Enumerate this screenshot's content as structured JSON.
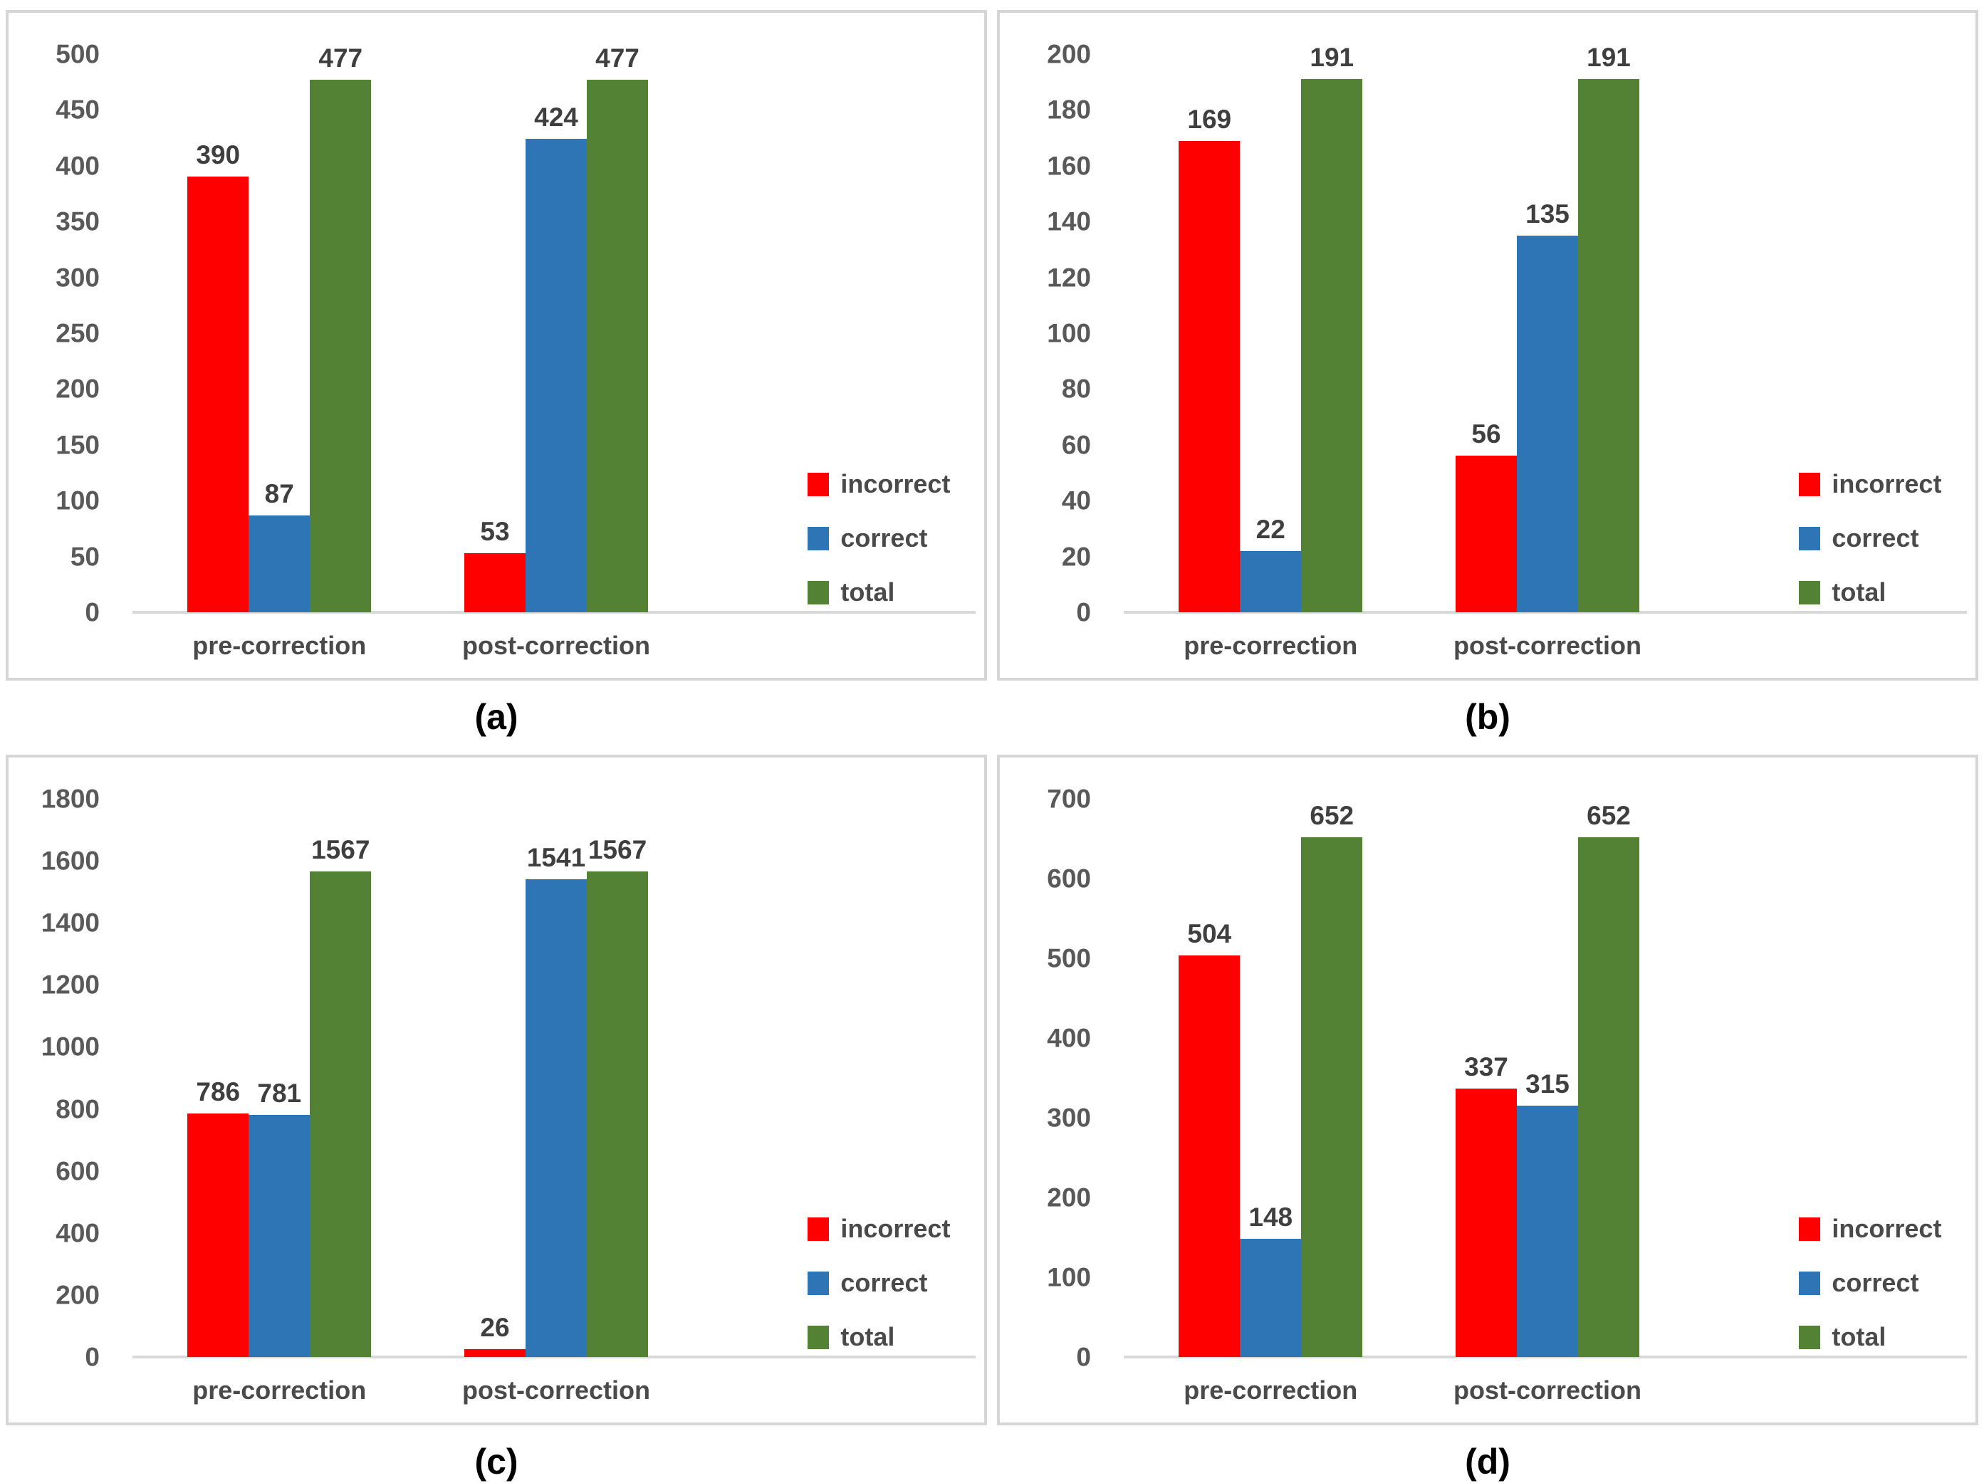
{
  "figure": {
    "description": "2x2 grid of grouped bar charts comparing incorrect, correct and total counts pre-correction vs post-correction",
    "legend_labels": [
      "incorrect",
      "correct",
      "total"
    ],
    "colors": {
      "incorrect": "#FF0000",
      "correct": "#2E75B6",
      "total": "#548235",
      "axis_text": "#595959",
      "baseline": "#D9D9D9"
    }
  },
  "chart_data": [
    {
      "id": "a",
      "type": "bar",
      "caption": "(a)",
      "categories": [
        "pre-correction",
        "post-correction"
      ],
      "series": [
        {
          "name": "incorrect",
          "color": "#FF0000",
          "values": [
            390,
            53
          ]
        },
        {
          "name": "correct",
          "color": "#2E75B6",
          "values": [
            87,
            424
          ]
        },
        {
          "name": "total",
          "color": "#548235",
          "values": [
            477,
            477
          ]
        }
      ],
      "ylim": [
        0,
        500
      ],
      "ytick_step": 50,
      "grid": false,
      "legend_position": "right-middle"
    },
    {
      "id": "b",
      "type": "bar",
      "caption": "(b)",
      "categories": [
        "pre-correction",
        "post-correction"
      ],
      "series": [
        {
          "name": "incorrect",
          "color": "#FF0000",
          "values": [
            169,
            56
          ]
        },
        {
          "name": "correct",
          "color": "#2E75B6",
          "values": [
            22,
            135
          ]
        },
        {
          "name": "total",
          "color": "#548235",
          "values": [
            191,
            191
          ]
        }
      ],
      "ylim": [
        0,
        200
      ],
      "ytick_step": 20,
      "grid": false,
      "legend_position": "right-middle"
    },
    {
      "id": "c",
      "type": "bar",
      "caption": "(c)",
      "categories": [
        "pre-correction",
        "post-correction"
      ],
      "series": [
        {
          "name": "incorrect",
          "color": "#FF0000",
          "values": [
            786,
            26
          ]
        },
        {
          "name": "correct",
          "color": "#2E75B6",
          "values": [
            781,
            1541
          ]
        },
        {
          "name": "total",
          "color": "#548235",
          "values": [
            1567,
            1567
          ]
        }
      ],
      "ylim": [
        0,
        1800
      ],
      "ytick_step": 200,
      "grid": false,
      "legend_position": "right-middle"
    },
    {
      "id": "d",
      "type": "bar",
      "caption": "(d)",
      "categories": [
        "pre-correction",
        "post-correction"
      ],
      "series": [
        {
          "name": "incorrect",
          "color": "#FF0000",
          "values": [
            504,
            337
          ]
        },
        {
          "name": "correct",
          "color": "#2E75B6",
          "values": [
            148,
            315
          ]
        },
        {
          "name": "total",
          "color": "#548235",
          "values": [
            652,
            652
          ]
        }
      ],
      "ylim": [
        0,
        700
      ],
      "ytick_step": 100,
      "grid": false,
      "legend_position": "right-middle"
    }
  ]
}
